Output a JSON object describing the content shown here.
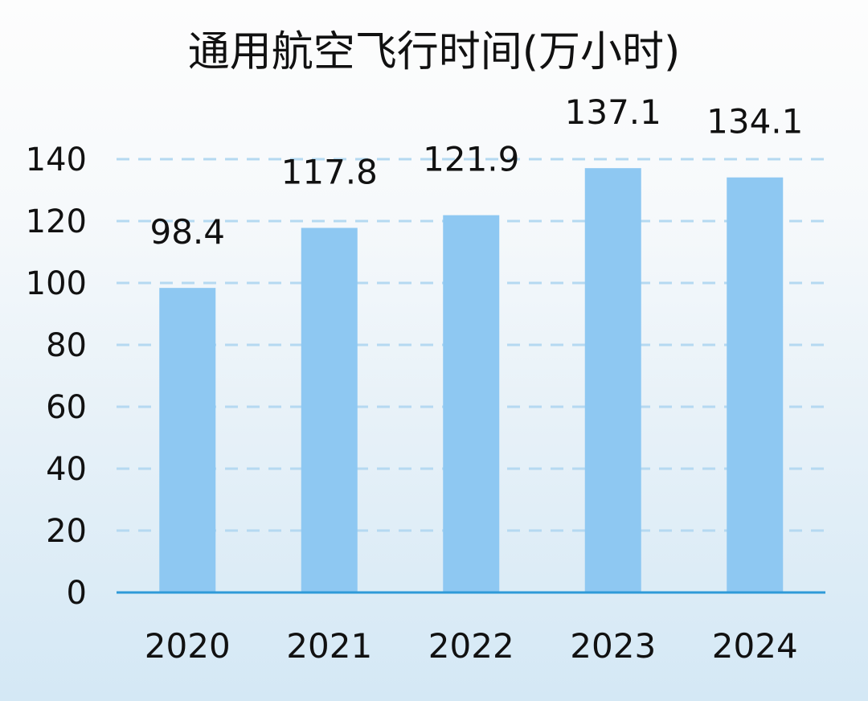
{
  "chart_data": {
    "type": "bar",
    "title": "通用航空飞行时间(万小时)",
    "categories": [
      "2020",
      "2021",
      "2022",
      "2023",
      "2024"
    ],
    "values": [
      98.4,
      117.8,
      121.9,
      137.1,
      134.1
    ],
    "value_labels": [
      "98.4",
      "117.8",
      "121.9",
      "137.1",
      "134.1"
    ],
    "xlabel": "",
    "ylabel": "",
    "ylim": [
      0,
      140
    ],
    "yticks": [
      0,
      20,
      40,
      60,
      80,
      100,
      120,
      140
    ],
    "ytick_labels": [
      "0",
      "20",
      "40",
      "60",
      "80",
      "100",
      "120",
      "140"
    ],
    "grid": true,
    "bar_color": "#8ec8f2",
    "axis_color": "#2f9ad8",
    "grid_color": "#b5d9f1"
  }
}
